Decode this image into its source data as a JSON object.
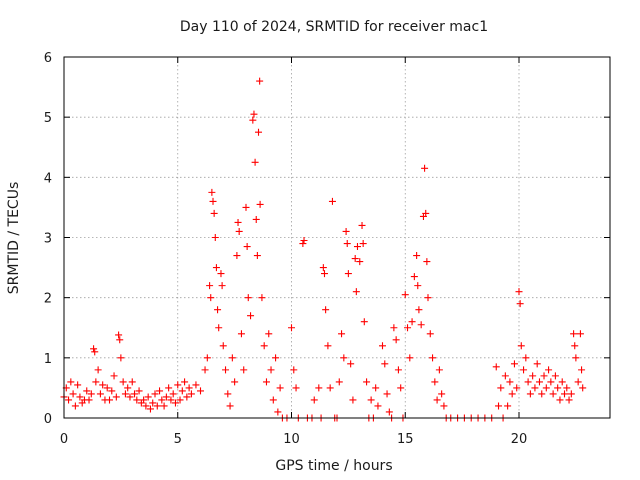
{
  "chart_data": {
    "type": "scatter",
    "title": "Day 110 of 2024, SRMTID for receiver mac1",
    "xlabel": "GPS time / hours",
    "ylabel": "SRMTID / TECUs",
    "xlim": [
      0,
      24
    ],
    "ylim": [
      0,
      6
    ],
    "x_ticks": [
      0,
      5,
      10,
      15,
      20
    ],
    "y_ticks": [
      0,
      1,
      2,
      3,
      4,
      5,
      6
    ],
    "grid": true,
    "marker": "plus",
    "series": [
      {
        "name": "SRMTID",
        "color": "#ff0000",
        "points": [
          [
            0.0,
            0.35
          ],
          [
            0.1,
            0.5
          ],
          [
            0.2,
            0.3
          ],
          [
            0.3,
            0.6
          ],
          [
            0.4,
            0.4
          ],
          [
            0.5,
            0.2
          ],
          [
            0.6,
            0.55
          ],
          [
            0.7,
            0.35
          ],
          [
            0.8,
            0.25
          ],
          [
            0.9,
            0.3
          ],
          [
            1.0,
            0.45
          ],
          [
            1.1,
            0.3
          ],
          [
            1.2,
            0.4
          ],
          [
            1.3,
            1.15
          ],
          [
            1.35,
            1.1
          ],
          [
            1.4,
            0.6
          ],
          [
            1.5,
            0.8
          ],
          [
            1.6,
            0.4
          ],
          [
            1.7,
            0.55
          ],
          [
            1.8,
            0.3
          ],
          [
            1.9,
            0.5
          ],
          [
            2.0,
            0.3
          ],
          [
            2.1,
            0.45
          ],
          [
            2.2,
            0.7
          ],
          [
            2.3,
            0.35
          ],
          [
            2.4,
            1.38
          ],
          [
            2.45,
            1.3
          ],
          [
            2.5,
            1.0
          ],
          [
            2.6,
            0.6
          ],
          [
            2.7,
            0.4
          ],
          [
            2.8,
            0.5
          ],
          [
            2.9,
            0.35
          ],
          [
            3.0,
            0.6
          ],
          [
            3.1,
            0.4
          ],
          [
            3.2,
            0.3
          ],
          [
            3.3,
            0.45
          ],
          [
            3.4,
            0.25
          ],
          [
            3.5,
            0.3
          ],
          [
            3.6,
            0.2
          ],
          [
            3.7,
            0.35
          ],
          [
            3.8,
            0.15
          ],
          [
            3.9,
            0.25
          ],
          [
            4.0,
            0.4
          ],
          [
            4.1,
            0.2
          ],
          [
            4.2,
            0.45
          ],
          [
            4.3,
            0.3
          ],
          [
            4.4,
            0.2
          ],
          [
            4.5,
            0.35
          ],
          [
            4.6,
            0.5
          ],
          [
            4.7,
            0.3
          ],
          [
            4.8,
            0.4
          ],
          [
            4.9,
            0.25
          ],
          [
            5.0,
            0.55
          ],
          [
            5.1,
            0.3
          ],
          [
            5.2,
            0.45
          ],
          [
            5.3,
            0.6
          ],
          [
            5.4,
            0.35
          ],
          [
            5.5,
            0.5
          ],
          [
            5.6,
            0.4
          ],
          [
            5.8,
            0.55
          ],
          [
            6.0,
            0.45
          ],
          [
            6.2,
            0.8
          ],
          [
            6.3,
            1.0
          ],
          [
            6.4,
            2.2
          ],
          [
            6.45,
            2.0
          ],
          [
            6.5,
            3.75
          ],
          [
            6.55,
            3.6
          ],
          [
            6.6,
            3.4
          ],
          [
            6.65,
            3.0
          ],
          [
            6.7,
            2.5
          ],
          [
            6.75,
            1.8
          ],
          [
            6.8,
            1.5
          ],
          [
            6.9,
            2.4
          ],
          [
            6.95,
            2.2
          ],
          [
            7.0,
            1.2
          ],
          [
            7.1,
            0.8
          ],
          [
            7.2,
            0.4
          ],
          [
            7.3,
            0.2
          ],
          [
            7.4,
            1.0
          ],
          [
            7.5,
            0.6
          ],
          [
            7.6,
            2.7
          ],
          [
            7.65,
            3.25
          ],
          [
            7.7,
            3.1
          ],
          [
            7.8,
            1.4
          ],
          [
            7.9,
            0.8
          ],
          [
            8.0,
            3.5
          ],
          [
            8.05,
            2.85
          ],
          [
            8.1,
            2.0
          ],
          [
            8.2,
            1.7
          ],
          [
            8.3,
            4.95
          ],
          [
            8.35,
            5.05
          ],
          [
            8.4,
            4.25
          ],
          [
            8.45,
            3.3
          ],
          [
            8.5,
            2.7
          ],
          [
            8.55,
            4.75
          ],
          [
            8.6,
            5.6
          ],
          [
            8.62,
            3.55
          ],
          [
            8.7,
            2.0
          ],
          [
            8.8,
            1.2
          ],
          [
            8.9,
            0.6
          ],
          [
            9.0,
            1.4
          ],
          [
            9.1,
            0.8
          ],
          [
            9.2,
            0.3
          ],
          [
            9.3,
            1.0
          ],
          [
            9.4,
            0.1
          ],
          [
            9.5,
            0.5
          ],
          [
            9.6,
            0.0
          ],
          [
            9.8,
            0.0
          ],
          [
            10.0,
            1.5
          ],
          [
            10.1,
            0.8
          ],
          [
            10.2,
            0.5
          ],
          [
            10.3,
            0.0
          ],
          [
            10.5,
            2.9
          ],
          [
            10.55,
            2.95
          ],
          [
            10.7,
            0.0
          ],
          [
            10.9,
            0.0
          ],
          [
            11.0,
            0.3
          ],
          [
            11.2,
            0.5
          ],
          [
            11.3,
            0.0
          ],
          [
            11.4,
            2.5
          ],
          [
            11.45,
            2.4
          ],
          [
            11.5,
            1.8
          ],
          [
            11.6,
            1.2
          ],
          [
            11.7,
            0.5
          ],
          [
            11.8,
            3.6
          ],
          [
            11.9,
            0.0
          ],
          [
            12.0,
            0.0
          ],
          [
            12.1,
            0.6
          ],
          [
            12.2,
            1.4
          ],
          [
            12.3,
            1.0
          ],
          [
            12.4,
            3.1
          ],
          [
            12.45,
            2.9
          ],
          [
            12.5,
            2.4
          ],
          [
            12.6,
            0.9
          ],
          [
            12.7,
            0.3
          ],
          [
            12.8,
            2.65
          ],
          [
            12.85,
            2.1
          ],
          [
            12.9,
            2.85
          ],
          [
            13.0,
            2.6
          ],
          [
            13.1,
            3.2
          ],
          [
            13.15,
            2.9
          ],
          [
            13.2,
            1.6
          ],
          [
            13.3,
            0.6
          ],
          [
            13.4,
            0.0
          ],
          [
            13.5,
            0.3
          ],
          [
            13.6,
            0.0
          ],
          [
            13.7,
            0.5
          ],
          [
            13.8,
            0.2
          ],
          [
            14.0,
            1.2
          ],
          [
            14.1,
            0.9
          ],
          [
            14.2,
            0.4
          ],
          [
            14.3,
            0.1
          ],
          [
            14.4,
            0.0
          ],
          [
            14.5,
            1.5
          ],
          [
            14.6,
            1.3
          ],
          [
            14.7,
            0.8
          ],
          [
            14.8,
            0.5
          ],
          [
            14.9,
            0.0
          ],
          [
            15.0,
            2.05
          ],
          [
            15.1,
            1.5
          ],
          [
            15.2,
            1.0
          ],
          [
            15.3,
            1.6
          ],
          [
            15.4,
            2.35
          ],
          [
            15.5,
            2.7
          ],
          [
            15.55,
            2.2
          ],
          [
            15.6,
            1.8
          ],
          [
            15.7,
            1.55
          ],
          [
            15.8,
            3.35
          ],
          [
            15.85,
            4.15
          ],
          [
            15.9,
            3.4
          ],
          [
            15.95,
            2.6
          ],
          [
            16.0,
            2.0
          ],
          [
            16.1,
            1.4
          ],
          [
            16.2,
            1.0
          ],
          [
            16.3,
            0.6
          ],
          [
            16.4,
            0.3
          ],
          [
            16.5,
            0.8
          ],
          [
            16.6,
            0.4
          ],
          [
            16.7,
            0.2
          ],
          [
            16.8,
            0.0
          ],
          [
            17.0,
            0.0
          ],
          [
            17.3,
            0.0
          ],
          [
            17.6,
            0.0
          ],
          [
            17.9,
            0.0
          ],
          [
            18.2,
            0.0
          ],
          [
            18.5,
            0.0
          ],
          [
            18.8,
            0.0
          ],
          [
            19.0,
            0.85
          ],
          [
            19.1,
            0.2
          ],
          [
            19.2,
            0.5
          ],
          [
            19.3,
            0.0
          ],
          [
            19.4,
            0.7
          ],
          [
            19.5,
            0.2
          ],
          [
            19.6,
            0.6
          ],
          [
            19.7,
            0.4
          ],
          [
            19.8,
            0.9
          ],
          [
            19.9,
            0.5
          ],
          [
            20.0,
            2.1
          ],
          [
            20.05,
            1.9
          ],
          [
            20.1,
            1.2
          ],
          [
            20.2,
            0.8
          ],
          [
            20.3,
            1.0
          ],
          [
            20.4,
            0.6
          ],
          [
            20.5,
            0.4
          ],
          [
            20.6,
            0.7
          ],
          [
            20.7,
            0.5
          ],
          [
            20.8,
            0.9
          ],
          [
            20.9,
            0.6
          ],
          [
            21.0,
            0.4
          ],
          [
            21.1,
            0.7
          ],
          [
            21.2,
            0.5
          ],
          [
            21.3,
            0.8
          ],
          [
            21.4,
            0.6
          ],
          [
            21.5,
            0.4
          ],
          [
            21.6,
            0.7
          ],
          [
            21.7,
            0.5
          ],
          [
            21.8,
            0.3
          ],
          [
            21.9,
            0.6
          ],
          [
            22.0,
            0.4
          ],
          [
            22.1,
            0.5
          ],
          [
            22.2,
            0.3
          ],
          [
            22.3,
            0.4
          ],
          [
            22.4,
            1.4
          ],
          [
            22.45,
            1.2
          ],
          [
            22.5,
            1.0
          ],
          [
            22.6,
            0.6
          ],
          [
            22.7,
            1.4
          ],
          [
            22.75,
            0.8
          ],
          [
            22.8,
            0.5
          ]
        ]
      }
    ]
  }
}
